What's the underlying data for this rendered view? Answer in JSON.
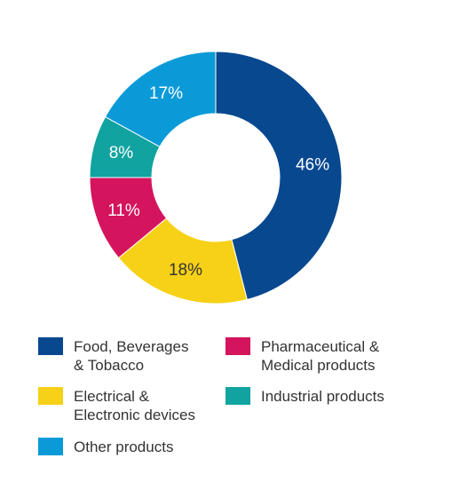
{
  "chart_data": {
    "type": "pie",
    "categories": [
      "Food, Beverages & Tobacco",
      "Electrical & Electronic devices",
      "Pharmaceutical & Medical products",
      "Industrial products",
      "Other products"
    ],
    "values": [
      46,
      18,
      11,
      8,
      17
    ],
    "labels": [
      "46%",
      "18%",
      "11%",
      "8%",
      "17%"
    ],
    "colors": [
      "#08488f",
      "#f7d117",
      "#d5145e",
      "#11a3a0",
      "#0b9ad8"
    ],
    "label_colors": [
      "#ffffff",
      "#333333",
      "#ffffff",
      "#ffffff",
      "#ffffff"
    ],
    "donut": true,
    "legend": "bottom"
  },
  "legend": {
    "items": [
      {
        "line1": "Food, Beverages",
        "line2": "& Tobacco",
        "color": "#08488f"
      },
      {
        "line1": "Pharmaceutical &",
        "line2": "Medical products",
        "color": "#d5145e"
      },
      {
        "line1": "Electrical &",
        "line2": "Electronic devices",
        "color": "#f7d117"
      },
      {
        "line1": "Industrial products",
        "line2": "",
        "color": "#11a3a0"
      },
      {
        "line1": "Other products",
        "line2": "",
        "color": "#0b9ad8"
      }
    ]
  }
}
